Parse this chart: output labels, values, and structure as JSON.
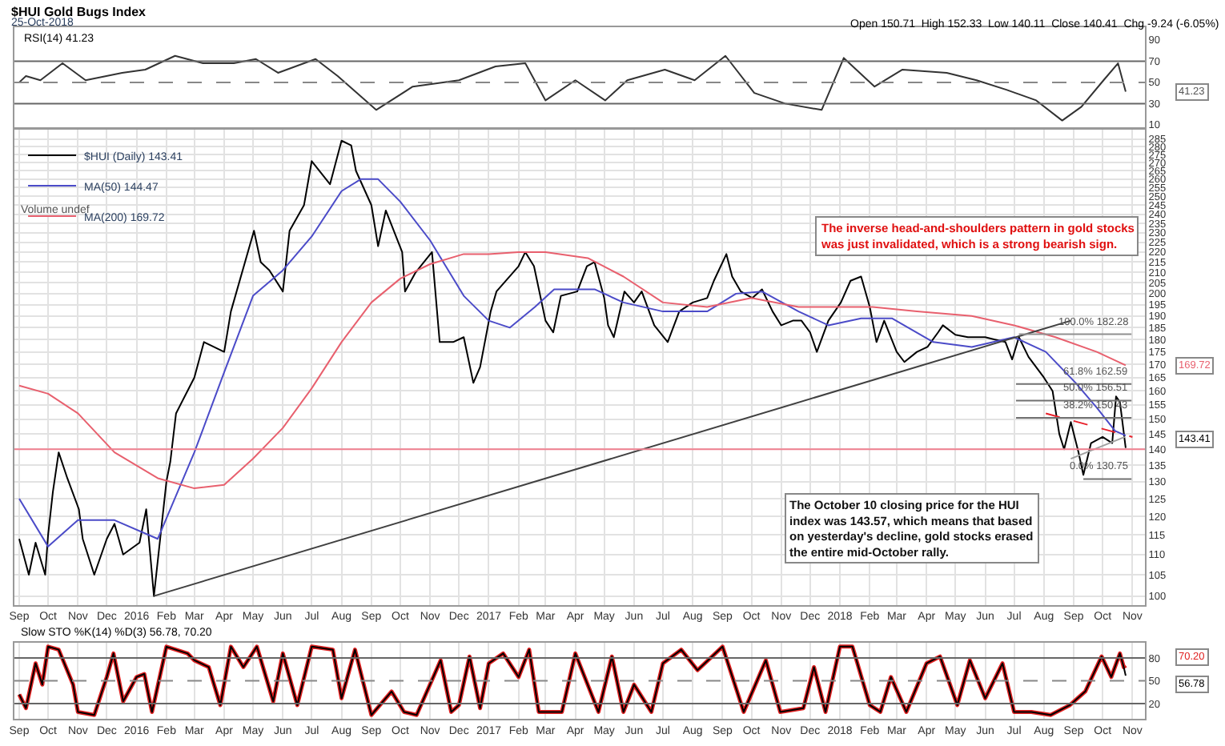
{
  "chart_data": [
    {
      "type": "line",
      "title": "$HUI Gold Bugs Index",
      "subtitle": "25-Oct-2018",
      "xlim": [
        "2015-08-27",
        "2018-11-14"
      ],
      "ylim": [
        8,
        102
      ],
      "yticks": [
        10,
        30,
        50,
        70,
        90
      ],
      "tick_labels": "y",
      "marker": "none",
      "series": [
        {
          "color": "#333333",
          "x": [
            "2015-09-01",
            "2015-09-08",
            "2015-09-23",
            "2015-10-16",
            "2015-11-09",
            "2015-12-17",
            "2016-01-10",
            "2016-02-10",
            "2016-03-10",
            "2016-04-11",
            "2016-05-04",
            "2016-05-27",
            "2016-07-05",
            "2016-07-28",
            "2016-09-06",
            "2016-10-14",
            "2016-12-01",
            "2017-01-08",
            "2017-02-08",
            "2017-03-01",
            "2017-04-01",
            "2017-05-02",
            "2017-05-25",
            "2017-07-03",
            "2017-08-03",
            "2017-09-04",
            "2017-10-04",
            "2017-11-05",
            "2017-12-13",
            "2018-01-05",
            "2018-02-06",
            "2018-03-07",
            "2018-04-22",
            "2018-05-23",
            "2018-06-23",
            "2018-07-24",
            "2018-08-20",
            "2018-09-09",
            "2018-10-02",
            "2018-10-17",
            "2018-10-25"
          ],
          "values": [
            50,
            56,
            52,
            68,
            52,
            59,
            62,
            75,
            68,
            68,
            72,
            59,
            72,
            56,
            24,
            46,
            52,
            65,
            68,
            33,
            52,
            33,
            52,
            62,
            52,
            75,
            40,
            30,
            24,
            73,
            46,
            62,
            59,
            52,
            43,
            33,
            14,
            27,
            52,
            68,
            41.23
          ]
        }
      ],
      "ref_lines": [
        {
          "axis": "y",
          "value": 70,
          "color": "#666666"
        },
        {
          "axis": "y",
          "value": 50,
          "color": "#888888",
          "line_style": "dashed"
        },
        {
          "axis": "y",
          "value": 30,
          "color": "#666666"
        }
      ],
      "annotations": [
        "Open 150.71  High 152.33  Low 140.11  Close 140.41  Chg -9.24 (-6.05%)",
        "RSI(14) 41.23",
        "41.23"
      ]
    },
    {
      "type": "line",
      "log": "y",
      "grid": true,
      "legend": "top left",
      "marker": "none",
      "xlim": [
        "2015-08-27",
        "2018-11-14"
      ],
      "ylim": [
        98,
        291
      ],
      "xticks": [
        {
          "value": "2015-09-01",
          "label": "Sep"
        },
        {
          "value": "2015-10-01",
          "label": "Oct"
        },
        {
          "value": "2015-11-01",
          "label": "Nov"
        },
        {
          "value": "2015-12-01",
          "label": "Dec"
        },
        {
          "value": "2016-01-01",
          "label": "2016"
        },
        {
          "value": "2016-02-01",
          "label": "Feb"
        },
        {
          "value": "2016-03-01",
          "label": "Mar"
        },
        {
          "value": "2016-04-01",
          "label": "Apr"
        },
        {
          "value": "2016-05-01",
          "label": "May"
        },
        {
          "value": "2016-06-01",
          "label": "Jun"
        },
        {
          "value": "2016-07-01",
          "label": "Jul"
        },
        {
          "value": "2016-08-01",
          "label": "Aug"
        },
        {
          "value": "2016-09-01",
          "label": "Sep"
        },
        {
          "value": "2016-10-01",
          "label": "Oct"
        },
        {
          "value": "2016-11-01",
          "label": "Nov"
        },
        {
          "value": "2016-12-01",
          "label": "Dec"
        },
        {
          "value": "2017-01-01",
          "label": "2017"
        },
        {
          "value": "2017-02-01",
          "label": "Feb"
        },
        {
          "value": "2017-03-01",
          "label": "Mar"
        },
        {
          "value": "2017-04-01",
          "label": "Apr"
        },
        {
          "value": "2017-05-01",
          "label": "May"
        },
        {
          "value": "2017-06-01",
          "label": "Jun"
        },
        {
          "value": "2017-07-01",
          "label": "Jul"
        },
        {
          "value": "2017-08-01",
          "label": "Aug"
        },
        {
          "value": "2017-09-01",
          "label": "Sep"
        },
        {
          "value": "2017-10-01",
          "label": "Oct"
        },
        {
          "value": "2017-11-01",
          "label": "Nov"
        },
        {
          "value": "2017-12-01",
          "label": "Dec"
        },
        {
          "value": "2018-01-01",
          "label": "2018"
        },
        {
          "value": "2018-02-01",
          "label": "Feb"
        },
        {
          "value": "2018-03-01",
          "label": "Mar"
        },
        {
          "value": "2018-04-01",
          "label": "Apr"
        },
        {
          "value": "2018-05-01",
          "label": "May"
        },
        {
          "value": "2018-06-01",
          "label": "Jun"
        },
        {
          "value": "2018-07-01",
          "label": "Jul"
        },
        {
          "value": "2018-08-01",
          "label": "Aug"
        },
        {
          "value": "2018-09-01",
          "label": "Sep"
        },
        {
          "value": "2018-10-01",
          "label": "Oct"
        },
        {
          "value": "2018-11-01",
          "label": "Nov"
        }
      ],
      "yticks": [
        100,
        105,
        110,
        115,
        120,
        125,
        130,
        135,
        140,
        145,
        150,
        155,
        160,
        165,
        170,
        175,
        180,
        185,
        190,
        195,
        200,
        205,
        210,
        215,
        220,
        225,
        230,
        235,
        240,
        245,
        250,
        255,
        260,
        265,
        270,
        275,
        280,
        285
      ],
      "series": [
        {
          "name": "$HUI (Daily) 143.41",
          "color": "#000000",
          "x": [
            "2015-09-01",
            "2015-09-11",
            "2015-09-18",
            "2015-09-28",
            "2015-10-01",
            "2015-10-06",
            "2015-10-12",
            "2015-10-21",
            "2015-11-02",
            "2015-11-06",
            "2015-11-18",
            "2015-12-01",
            "2015-12-09",
            "2015-12-18",
            "2016-01-04",
            "2016-01-11",
            "2016-01-19",
            "2016-02-01",
            "2016-02-05",
            "2016-02-11",
            "2016-03-01",
            "2016-03-11",
            "2016-04-01",
            "2016-04-08",
            "2016-05-02",
            "2016-05-09",
            "2016-05-18",
            "2016-06-01",
            "2016-06-08",
            "2016-06-23",
            "2016-07-01",
            "2016-07-20",
            "2016-08-01",
            "2016-08-11",
            "2016-08-16",
            "2016-09-01",
            "2016-09-08",
            "2016-09-16",
            "2016-10-03",
            "2016-10-06",
            "2016-10-17",
            "2016-11-03",
            "2016-11-11",
            "2016-11-25",
            "2016-12-06",
            "2016-12-16",
            "2016-12-23",
            "2017-01-03",
            "2017-01-09",
            "2017-02-01",
            "2017-02-08",
            "2017-02-17",
            "2017-03-01",
            "2017-03-09",
            "2017-03-17",
            "2017-04-03",
            "2017-04-13",
            "2017-04-21",
            "2017-05-01",
            "2017-05-05",
            "2017-05-11",
            "2017-05-22",
            "2017-06-01",
            "2017-06-09",
            "2017-06-22",
            "2017-07-06",
            "2017-07-18",
            "2017-08-01",
            "2017-08-16",
            "2017-08-23",
            "2017-09-05",
            "2017-09-11",
            "2017-09-20",
            "2017-10-02",
            "2017-10-12",
            "2017-10-23",
            "2017-11-01",
            "2017-11-13",
            "2017-11-22",
            "2017-12-01",
            "2017-12-08",
            "2017-12-20",
            "2018-01-02",
            "2018-01-12",
            "2018-01-23",
            "2018-02-01",
            "2018-02-08",
            "2018-02-16",
            "2018-03-01",
            "2018-03-09",
            "2018-03-22",
            "2018-04-02",
            "2018-04-13",
            "2018-04-18",
            "2018-05-01",
            "2018-05-14",
            "2018-06-01",
            "2018-06-11",
            "2018-06-22",
            "2018-06-29",
            "2018-07-06",
            "2018-07-16",
            "2018-08-01",
            "2018-08-10",
            "2018-08-17",
            "2018-08-22",
            "2018-08-29",
            "2018-09-06",
            "2018-09-11",
            "2018-09-19",
            "2018-10-01",
            "2018-10-11",
            "2018-10-15",
            "2018-10-19",
            "2018-10-25"
          ],
          "values": [
            114,
            105,
            113,
            105,
            115,
            127,
            139,
            131,
            122,
            114,
            105,
            114,
            118,
            110,
            113,
            122,
            100,
            130,
            136,
            152,
            165,
            179,
            175,
            192,
            231,
            215,
            211,
            201,
            231,
            245,
            271,
            257,
            284,
            281,
            265,
            245,
            223,
            242,
            220,
            201,
            210,
            220,
            179,
            179,
            181,
            163,
            169,
            192,
            201,
            213,
            220,
            213,
            188,
            183,
            199,
            201,
            213,
            215,
            198,
            186,
            181,
            201,
            196,
            201,
            186,
            179,
            192,
            196,
            198,
            206,
            219,
            208,
            201,
            198,
            202,
            192,
            186,
            188,
            188,
            183,
            175,
            188,
            196,
            206,
            208,
            194,
            179,
            188,
            175,
            171,
            175,
            177,
            183,
            186,
            182,
            181,
            181,
            180,
            179,
            172,
            181,
            173,
            165,
            160,
            145,
            140,
            149,
            139,
            132,
            142,
            144,
            142,
            158,
            156,
            140.41
          ]
        },
        {
          "name": "MA(50) 144.47",
          "color": "#4b4bc8",
          "x": [
            "2015-09-01",
            "2015-10-01",
            "2015-11-01",
            "2015-12-09",
            "2016-01-23",
            "2016-03-01",
            "2016-04-01",
            "2016-05-01",
            "2016-06-01",
            "2016-07-01",
            "2016-08-01",
            "2016-08-21",
            "2016-09-08",
            "2016-10-01",
            "2016-11-01",
            "2016-12-06",
            "2017-01-01",
            "2017-01-23",
            "2017-02-18",
            "2017-03-10",
            "2017-04-21",
            "2017-05-21",
            "2017-07-01",
            "2017-08-16",
            "2017-09-15",
            "2017-10-12",
            "2017-11-19",
            "2017-12-20",
            "2018-01-23",
            "2018-02-24",
            "2018-04-08",
            "2018-05-18",
            "2018-07-01",
            "2018-08-03",
            "2018-09-03",
            "2018-09-25",
            "2018-10-14",
            "2018-10-25"
          ],
          "values": [
            125,
            112,
            119,
            119,
            114,
            139,
            167,
            199,
            211,
            228,
            253,
            260,
            260,
            247,
            226,
            199,
            188,
            185,
            194,
            202,
            202,
            196,
            192,
            192,
            200,
            201,
            192,
            186,
            189,
            189,
            179,
            177,
            181,
            175,
            163,
            154,
            146,
            144.47
          ]
        },
        {
          "name": "MA(200) 169.72",
          "color": "#e8606e",
          "x": [
            "2015-09-01",
            "2015-10-01",
            "2015-11-01",
            "2015-12-09",
            "2016-01-23",
            "2016-03-01",
            "2016-04-01",
            "2016-05-01",
            "2016-06-01",
            "2016-07-01",
            "2016-08-01",
            "2016-09-01",
            "2016-10-01",
            "2016-11-01",
            "2016-12-06",
            "2017-01-01",
            "2017-02-01",
            "2017-03-01",
            "2017-04-14",
            "2017-05-21",
            "2017-07-01",
            "2017-08-16",
            "2017-10-01",
            "2017-11-19",
            "2018-01-01",
            "2018-02-04",
            "2018-03-22",
            "2018-05-18",
            "2018-07-01",
            "2018-08-13",
            "2018-09-25",
            "2018-10-25"
          ],
          "values": [
            162,
            159,
            152,
            139,
            131,
            128,
            129,
            137,
            147,
            161,
            179,
            196,
            207,
            214,
            219,
            219,
            220,
            220,
            217,
            208,
            196,
            194,
            198,
            194,
            194,
            194,
            192,
            190,
            186,
            181,
            175,
            169.72
          ]
        },
        {
          "color": "#404040",
          "x": [
            "2016-01-19",
            "2018-08-29"
          ],
          "values": [
            100,
            188
          ]
        },
        {
          "color": "#a0a0a0",
          "x": [
            "2018-08-29",
            "2018-10-24"
          ],
          "values": [
            137,
            144
          ]
        },
        {
          "color": "#e8202a",
          "line_style": "dashed",
          "x": [
            "2018-08-03",
            "2018-11-01"
          ],
          "values": [
            152,
            144
          ]
        },
        {
          "color": "#909090",
          "x": [
            "2018-07-06",
            "2018-10-31"
          ],
          "values": [
            182.28,
            182.28
          ]
        },
        {
          "color": "#707070",
          "x": [
            "2018-07-03",
            "2018-10-31"
          ],
          "values": [
            162.59,
            162.59
          ]
        },
        {
          "color": "#707070",
          "x": [
            "2018-07-03",
            "2018-10-31"
          ],
          "values": [
            156.51,
            156.51
          ]
        },
        {
          "color": "#707070",
          "x": [
            "2018-07-03",
            "2018-10-31"
          ],
          "values": [
            150.43,
            150.43
          ]
        },
        {
          "color": "#707070",
          "x": [
            "2018-09-11",
            "2018-10-31"
          ],
          "values": [
            130.75,
            130.75
          ]
        }
      ],
      "ref_lines": [
        {
          "axis": "y",
          "value": 140,
          "color": "#f08090"
        }
      ],
      "annotations": [
        "Volume undef",
        "The inverse head-and-shoulders pattern in gold stocks\nwas just invalidated, which is a strong bearish sign.",
        "The October 10 closing price for the HUI\nindex was 143.57, which means that based\non yesterday's decline, gold stocks erased\nthe entire mid-October rally.",
        {
          "text": "100.0% 182.28",
          "x": "2018-10-31",
          "y": 182.28
        },
        {
          "text": "61.8% 162.59",
          "x": "2018-10-31",
          "y": 162.59
        },
        {
          "text": "50.0% 156.51",
          "x": "2018-10-31",
          "y": 156.51
        },
        {
          "text": "38.2% 150.43",
          "x": "2018-10-31",
          "y": 150.43
        },
        {
          "text": "0.0% 130.75",
          "x": "2018-10-31",
          "y": 130.75
        },
        "169.72",
        "143.41"
      ]
    },
    {
      "type": "line",
      "title": "Slow STO %K(14) %D(3) 56.78, 70.20",
      "grid": "x",
      "marker": "none",
      "xlim": [
        "2015-08-27",
        "2018-11-14"
      ],
      "ylim": [
        0,
        100
      ],
      "yticks": [
        20,
        50,
        80
      ],
      "xticks": [
        {
          "value": "2015-09-01",
          "label": "Sep"
        },
        {
          "value": "2015-10-01",
          "label": "Oct"
        },
        {
          "value": "2015-11-01",
          "label": "Nov"
        },
        {
          "value": "2015-12-01",
          "label": "Dec"
        },
        {
          "value": "2016-01-01",
          "label": "2016"
        },
        {
          "value": "2016-02-01",
          "label": "Feb"
        },
        {
          "value": "2016-03-01",
          "label": "Mar"
        },
        {
          "value": "2016-04-01",
          "label": "Apr"
        },
        {
          "value": "2016-05-01",
          "label": "May"
        },
        {
          "value": "2016-06-01",
          "label": "Jun"
        },
        {
          "value": "2016-07-01",
          "label": "Jul"
        },
        {
          "value": "2016-08-01",
          "label": "Aug"
        },
        {
          "value": "2016-09-01",
          "label": "Sep"
        },
        {
          "value": "2016-10-01",
          "label": "Oct"
        },
        {
          "value": "2016-11-01",
          "label": "Nov"
        },
        {
          "value": "2016-12-01",
          "label": "Dec"
        },
        {
          "value": "2017-01-01",
          "label": "2017"
        },
        {
          "value": "2017-02-01",
          "label": "Feb"
        },
        {
          "value": "2017-03-01",
          "label": "Mar"
        },
        {
          "value": "2017-04-01",
          "label": "Apr"
        },
        {
          "value": "2017-05-01",
          "label": "May"
        },
        {
          "value": "2017-06-01",
          "label": "Jun"
        },
        {
          "value": "2017-07-01",
          "label": "Jul"
        },
        {
          "value": "2017-08-01",
          "label": "Aug"
        },
        {
          "value": "2017-09-01",
          "label": "Sep"
        },
        {
          "value": "2017-10-01",
          "label": "Oct"
        },
        {
          "value": "2017-11-01",
          "label": "Nov"
        },
        {
          "value": "2017-12-01",
          "label": "Dec"
        },
        {
          "value": "2018-01-01",
          "label": "2018"
        },
        {
          "value": "2018-02-01",
          "label": "Feb"
        },
        {
          "value": "2018-03-01",
          "label": "Mar"
        },
        {
          "value": "2018-04-01",
          "label": "Apr"
        },
        {
          "value": "2018-05-01",
          "label": "May"
        },
        {
          "value": "2018-06-01",
          "label": "Jun"
        },
        {
          "value": "2018-07-01",
          "label": "Jul"
        },
        {
          "value": "2018-08-01",
          "label": "Aug"
        },
        {
          "value": "2018-09-01",
          "label": "Sep"
        },
        {
          "value": "2018-10-01",
          "label": "Oct"
        },
        {
          "value": "2018-11-01",
          "label": "Nov"
        }
      ],
      "series": [
        {
          "color": "#e02020",
          "x": [
            "2015-09-01",
            "2015-09-08",
            "2015-09-18",
            "2015-09-25",
            "2015-10-01",
            "2015-10-12",
            "2015-10-27",
            "2015-11-01",
            "2015-11-18",
            "2015-12-01",
            "2015-12-08",
            "2015-12-18",
            "2016-01-01",
            "2016-01-09",
            "2016-01-17",
            "2016-02-01",
            "2016-02-23",
            "2016-03-01",
            "2016-03-16",
            "2016-03-28",
            "2016-04-08",
            "2016-04-21",
            "2016-05-05",
            "2016-05-22",
            "2016-06-01",
            "2016-06-16",
            "2016-07-01",
            "2016-07-23",
            "2016-08-01",
            "2016-08-15",
            "2016-09-01",
            "2016-09-22",
            "2016-10-05",
            "2016-10-18",
            "2016-11-12",
            "2016-11-23",
            "2016-12-01",
            "2016-12-12",
            "2016-12-23",
            "2017-01-01",
            "2017-01-16",
            "2017-02-01",
            "2017-02-12",
            "2017-02-22",
            "2017-03-18",
            "2017-04-01",
            "2017-04-25",
            "2017-05-09",
            "2017-05-21",
            "2017-06-01",
            "2017-06-19",
            "2017-07-01",
            "2017-07-20",
            "2017-08-06",
            "2017-09-01",
            "2017-09-23",
            "2017-10-16",
            "2017-10-31",
            "2017-11-24",
            "2017-12-05",
            "2017-12-17",
            "2018-01-01",
            "2018-01-14",
            "2018-02-01",
            "2018-02-12",
            "2018-02-23",
            "2018-03-11",
            "2018-04-01",
            "2018-04-15",
            "2018-05-03",
            "2018-05-16",
            "2018-06-01",
            "2018-06-19",
            "2018-07-01",
            "2018-07-19",
            "2018-08-08",
            "2018-08-28",
            "2018-09-13",
            "2018-09-30",
            "2018-10-10",
            "2018-10-19",
            "2018-10-23",
            "2018-10-25"
          ],
          "values": [
            32,
            14,
            73,
            45,
            95,
            91,
            45,
            9,
            5,
            55,
            86,
            23,
            55,
            59,
            9,
            95,
            86,
            77,
            68,
            18,
            95,
            68,
            95,
            23,
            86,
            18,
            95,
            91,
            27,
            91,
            5,
            36,
            9,
            5,
            77,
            9,
            18,
            82,
            14,
            73,
            86,
            55,
            91,
            9,
            9,
            86,
            9,
            82,
            9,
            45,
            9,
            73,
            91,
            64,
            95,
            9,
            77,
            9,
            14,
            68,
            9,
            95,
            95,
            18,
            9,
            55,
            9,
            73,
            82,
            18,
            77,
            27,
            73,
            9,
            9,
            5,
            18,
            36,
            82,
            55,
            86,
            68,
            70.2
          ]
        },
        {
          "color": "#000000",
          "x": [
            "2015-09-01",
            "2015-09-08",
            "2015-09-18",
            "2015-09-25",
            "2015-10-01",
            "2015-10-12",
            "2015-10-27",
            "2015-11-01",
            "2015-11-18",
            "2015-12-01",
            "2015-12-08",
            "2015-12-18",
            "2016-01-01",
            "2016-01-09",
            "2016-01-17",
            "2016-02-01",
            "2016-02-23",
            "2016-03-01",
            "2016-03-16",
            "2016-03-28",
            "2016-04-08",
            "2016-04-21",
            "2016-05-05",
            "2016-05-22",
            "2016-06-01",
            "2016-06-16",
            "2016-07-01",
            "2016-07-23",
            "2016-08-01",
            "2016-08-15",
            "2016-09-01",
            "2016-09-22",
            "2016-10-05",
            "2016-10-18",
            "2016-11-12",
            "2016-11-23",
            "2016-12-01",
            "2016-12-12",
            "2016-12-23",
            "2017-01-01",
            "2017-01-16",
            "2017-02-01",
            "2017-02-12",
            "2017-02-22",
            "2017-03-18",
            "2017-04-01",
            "2017-04-25",
            "2017-05-09",
            "2017-05-21",
            "2017-06-01",
            "2017-06-19",
            "2017-07-01",
            "2017-07-20",
            "2017-08-06",
            "2017-09-01",
            "2017-09-23",
            "2017-10-16",
            "2017-10-31",
            "2017-11-24",
            "2017-12-05",
            "2017-12-17",
            "2018-01-01",
            "2018-01-14",
            "2018-02-01",
            "2018-02-12",
            "2018-02-23",
            "2018-03-11",
            "2018-04-01",
            "2018-04-15",
            "2018-05-03",
            "2018-05-16",
            "2018-06-01",
            "2018-06-19",
            "2018-07-01",
            "2018-07-19",
            "2018-08-08",
            "2018-08-28",
            "2018-09-13",
            "2018-09-30",
            "2018-10-10",
            "2018-10-19",
            "2018-10-23",
            "2018-10-25"
          ],
          "values": [
            32,
            14,
            73,
            45,
            95,
            91,
            45,
            9,
            5,
            55,
            86,
            23,
            55,
            59,
            9,
            95,
            86,
            77,
            68,
            18,
            95,
            68,
            95,
            23,
            86,
            18,
            95,
            91,
            27,
            91,
            5,
            36,
            9,
            5,
            77,
            9,
            18,
            82,
            14,
            73,
            86,
            55,
            91,
            9,
            9,
            86,
            9,
            82,
            9,
            45,
            9,
            73,
            91,
            64,
            95,
            9,
            77,
            9,
            14,
            68,
            9,
            95,
            95,
            18,
            9,
            55,
            9,
            73,
            82,
            18,
            77,
            27,
            73,
            9,
            9,
            5,
            18,
            36,
            82,
            55,
            86,
            68,
            56.78
          ]
        }
      ],
      "ref_lines": [
        {
          "axis": "y",
          "value": 80,
          "color": "#666666"
        },
        {
          "axis": "y",
          "value": 50,
          "color": "#888888",
          "line_style": "dashed"
        },
        {
          "axis": "y",
          "value": 20,
          "color": "#666666"
        }
      ],
      "annotations": [
        "70.20",
        "56.78"
      ]
    }
  ]
}
